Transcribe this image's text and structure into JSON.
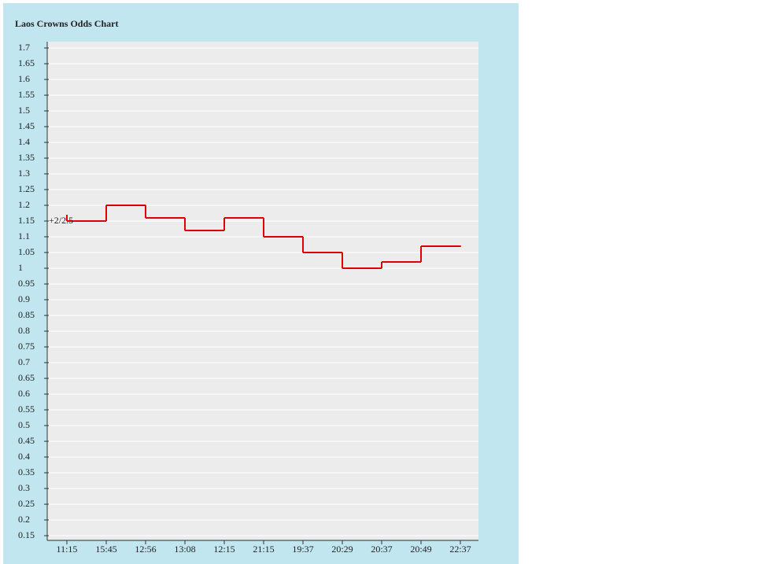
{
  "chart_data": {
    "type": "step",
    "title": "Laos Crowns Odds Chart",
    "annotation": "+2/2.5",
    "categories": [
      "11:15",
      "15:45",
      "12:56",
      "13:08",
      "12:15",
      "21:15",
      "19:37",
      "20:29",
      "20:37",
      "20:49",
      "22:37"
    ],
    "values": [
      1.15,
      1.2,
      1.16,
      1.12,
      1.16,
      1.1,
      1.05,
      1.0,
      1.02,
      1.07,
      1.07
    ],
    "color": "#e00000",
    "ylim": [
      0.14,
      1.72
    ],
    "yticks": [
      0.15,
      0.2,
      0.25,
      0.3,
      0.35,
      0.4,
      0.45,
      0.5,
      0.55,
      0.6,
      0.65,
      0.7,
      0.75,
      0.8,
      0.85,
      0.9,
      0.95,
      1.0,
      1.05,
      1.1,
      1.15,
      1.2,
      1.25,
      1.3,
      1.35,
      1.4,
      1.45,
      1.5,
      1.55,
      1.6,
      1.65,
      1.7
    ],
    "grid": true
  }
}
